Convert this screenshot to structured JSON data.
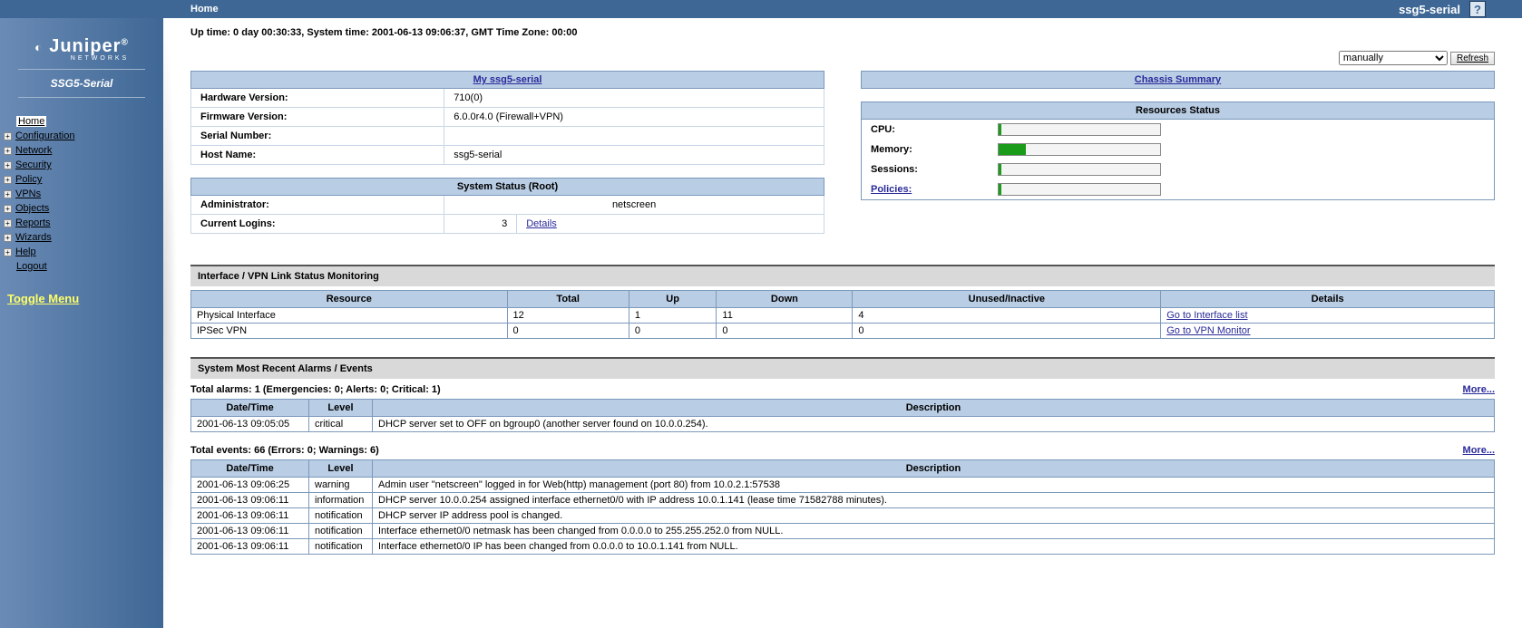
{
  "colors": {
    "topbar": "#3f6795",
    "panel_header": "#b9cde4",
    "border": "#7a99bb",
    "bar_fill": "#1a9b1a",
    "link": "#2a2a9a",
    "toggle": "#ffff66"
  },
  "topbar": {
    "title": "Home",
    "device": "ssg5-serial",
    "help_tooltip": "?"
  },
  "sidebar": {
    "brand": "Juniper",
    "brand_sub": "NETWORKS",
    "device": "SSG5-Serial",
    "items": [
      {
        "label": "Home",
        "expandable": false,
        "selected": true
      },
      {
        "label": "Configuration",
        "expandable": true
      },
      {
        "label": "Network",
        "expandable": true
      },
      {
        "label": "Security",
        "expandable": true
      },
      {
        "label": "Policy",
        "expandable": true
      },
      {
        "label": "VPNs",
        "expandable": true
      },
      {
        "label": "Objects",
        "expandable": true
      },
      {
        "label": "Reports",
        "expandable": true
      },
      {
        "label": "Wizards",
        "expandable": true
      },
      {
        "label": "Help",
        "expandable": true
      },
      {
        "label": "Logout",
        "expandable": false
      }
    ],
    "toggle": "Toggle Menu"
  },
  "uptime_line": "Up time: 0 day 00:30:33,   System time: 2001-06-13 09:06:37,   GMT Time Zone: 00:00",
  "refresh": {
    "selected": "manually",
    "button": "Refresh"
  },
  "device_panel": {
    "title": "My ssg5-serial",
    "rows": {
      "hw_label": "Hardware Version:",
      "hw_value": "710(0)",
      "fw_label": "Firmware Version:",
      "fw_value": "6.0.0r4.0 (Firewall+VPN)",
      "sn_label": "Serial Number:",
      "sn_value": "",
      "hn_label": "Host Name:",
      "hn_value": "ssg5-serial"
    }
  },
  "system_status": {
    "title": "System Status  (Root)",
    "admin_label": "Administrator:",
    "admin_value": "netscreen",
    "logins_label": "Current Logins:",
    "logins_value": "3",
    "details": "Details"
  },
  "chassis": {
    "title": "Chassis Summary"
  },
  "resources": {
    "title": "Resources Status",
    "rows": [
      {
        "label": "CPU:",
        "pct": 2
      },
      {
        "label": "Memory:",
        "pct": 17
      },
      {
        "label": "Sessions:",
        "pct": 2
      },
      {
        "label": "Policies:",
        "pct": 2,
        "is_link": true
      }
    ]
  },
  "if_section": {
    "title": "Interface / VPN Link Status Monitoring",
    "cols": [
      "Resource",
      "Total",
      "Up",
      "Down",
      "Unused/Inactive",
      "Details"
    ],
    "rows": [
      {
        "r": "Physical Interface",
        "t": "12",
        "u": "1",
        "d": "11",
        "i": "4",
        "link": "Go to Interface list"
      },
      {
        "r": "IPSec VPN",
        "t": "0",
        "u": "0",
        "d": "0",
        "i": "0",
        "link": "Go to VPN Monitor"
      }
    ]
  },
  "alarms_section": {
    "title": "System Most Recent Alarms   /   Events",
    "alarms_summary": "Total alarms: 1   (Emergencies: 0; Alerts: 0; Critical: 1)",
    "more": "More...",
    "cols": [
      "Date/Time",
      "Level",
      "Description"
    ],
    "alarms": [
      {
        "dt": "2001-06-13 09:05:05",
        "lv": "critical",
        "de": "DHCP server set to OFF on bgroup0 (another server found on 10.0.0.254)."
      }
    ],
    "events_summary": "Total events: 66   (Errors: 0; Warnings: 6)",
    "events": [
      {
        "dt": "2001-06-13 09:06:25",
        "lv": "warning",
        "de": "Admin user \"netscreen\" logged in for Web(http) management (port 80) from 10.0.2.1:57538"
      },
      {
        "dt": "2001-06-13 09:06:11",
        "lv": "information",
        "de": "DHCP server 10.0.0.254 assigned interface ethernet0/0 with IP address 10.0.1.141 (lease time 71582788 minutes)."
      },
      {
        "dt": "2001-06-13 09:06:11",
        "lv": "notification",
        "de": "DHCP server IP address pool is changed."
      },
      {
        "dt": "2001-06-13 09:06:11",
        "lv": "notification",
        "de": "Interface ethernet0/0 netmask has been changed from 0.0.0.0 to 255.255.252.0 from NULL."
      },
      {
        "dt": "2001-06-13 09:06:11",
        "lv": "notification",
        "de": "Interface ethernet0/0 IP has been changed from 0.0.0.0 to 10.0.1.141 from NULL."
      }
    ]
  }
}
